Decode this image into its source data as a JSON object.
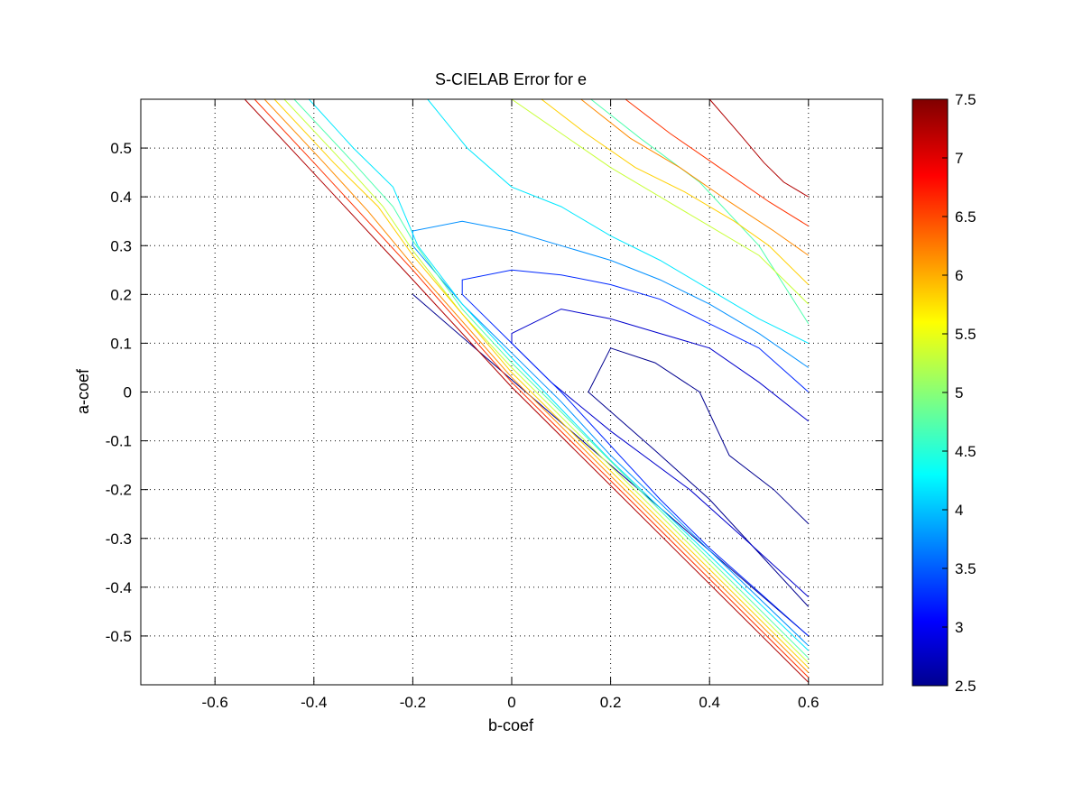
{
  "chart_data": {
    "type": "contour",
    "title": "S-CIELAB Error for e",
    "xlabel": "b-coef",
    "ylabel": "a-coef",
    "xlim": [
      -0.75,
      0.75
    ],
    "ylim": [
      -0.6,
      0.6
    ],
    "xticks": [
      -0.6,
      -0.4,
      -0.2,
      0,
      0.2,
      0.4,
      0.6
    ],
    "yticks": [
      -0.5,
      -0.4,
      -0.3,
      -0.2,
      -0.1,
      0,
      0.1,
      0.2,
      0.3,
      0.4,
      0.5
    ],
    "xtick_labels": [
      "-0.6",
      "-0.4",
      "-0.2",
      "0",
      "0.2",
      "0.4",
      "0.6"
    ],
    "ytick_labels": [
      "-0.5",
      "-0.4",
      "-0.3",
      "-0.2",
      "-0.1",
      "0",
      "0.1",
      "0.2",
      "0.3",
      "0.4",
      "0.5"
    ],
    "grid": "dotted",
    "colorbar": {
      "range": [
        2.5,
        7.5
      ],
      "ticks": [
        2.5,
        3,
        3.5,
        4,
        4.5,
        5,
        5.5,
        6,
        6.5,
        7,
        7.5
      ],
      "tick_labels": [
        "2.5",
        "3",
        "3.5",
        "4",
        "4.5",
        "5",
        "5.5",
        "6",
        "6.5",
        "7",
        "7.5"
      ],
      "colormap": "jet",
      "placement": "right"
    },
    "contours": [
      {
        "level": 2.9,
        "color": "#00008f",
        "points": [
          [
            0.155,
            0.0
          ],
          [
            0.2,
            0.09
          ],
          [
            0.29,
            0.06
          ],
          [
            0.38,
            0.0
          ],
          [
            0.44,
            -0.13
          ],
          [
            0.53,
            -0.2
          ],
          [
            0.6,
            -0.27
          ]
        ]
      },
      {
        "level": 2.9,
        "color": "#00008f",
        "points": [
          [
            0.155,
            0.0
          ],
          [
            0.29,
            -0.12
          ],
          [
            0.4,
            -0.22
          ],
          [
            0.5,
            -0.33
          ],
          [
            0.6,
            -0.44
          ]
        ]
      },
      {
        "level": 2.9,
        "color": "#00008f",
        "points": [
          [
            -0.2,
            0.2
          ],
          [
            0.6,
            -0.5
          ]
        ]
      },
      {
        "level": 3.2,
        "color": "#0000cc",
        "points": [
          [
            0.0,
            0.1
          ],
          [
            0.0,
            0.12
          ],
          [
            0.1,
            0.17
          ],
          [
            0.2,
            0.15
          ],
          [
            0.3,
            0.12
          ],
          [
            0.4,
            0.09
          ],
          [
            0.5,
            0.02
          ],
          [
            0.6,
            -0.06
          ]
        ]
      },
      {
        "level": 3.2,
        "color": "#0000cc",
        "points": [
          [
            0.0,
            0.1
          ],
          [
            0.08,
            0.02
          ],
          [
            0.2,
            -0.08
          ],
          [
            0.36,
            -0.2
          ],
          [
            0.47,
            -0.3
          ],
          [
            0.6,
            -0.42
          ]
        ]
      },
      {
        "level": 3.5,
        "color": "#0028ff",
        "points": [
          [
            -0.1,
            0.2
          ],
          [
            -0.1,
            0.23
          ],
          [
            0.0,
            0.25
          ],
          [
            0.1,
            0.24
          ],
          [
            0.2,
            0.22
          ],
          [
            0.3,
            0.19
          ],
          [
            0.4,
            0.14
          ],
          [
            0.5,
            0.09
          ],
          [
            0.6,
            0.0
          ]
        ]
      },
      {
        "level": 3.5,
        "color": "#0028ff",
        "points": [
          [
            -0.1,
            0.2
          ],
          [
            0.0,
            0.1
          ],
          [
            0.1,
            0.0
          ],
          [
            0.2,
            -0.11
          ],
          [
            0.3,
            -0.22
          ],
          [
            0.4,
            -0.32
          ],
          [
            0.6,
            -0.5
          ]
        ]
      },
      {
        "level": 3.8,
        "color": "#0090ff",
        "points": [
          [
            -0.2,
            0.3
          ],
          [
            -0.2,
            0.33
          ],
          [
            -0.1,
            0.35
          ],
          [
            0.0,
            0.33
          ],
          [
            0.1,
            0.3
          ],
          [
            0.2,
            0.27
          ],
          [
            0.3,
            0.23
          ],
          [
            0.4,
            0.18
          ],
          [
            0.5,
            0.12
          ],
          [
            0.6,
            0.05
          ]
        ]
      },
      {
        "level": 3.8,
        "color": "#0090ff",
        "points": [
          [
            -0.2,
            0.3
          ],
          [
            -0.1,
            0.18
          ],
          [
            0.0,
            0.08
          ],
          [
            0.1,
            -0.02
          ],
          [
            0.2,
            -0.13
          ],
          [
            0.6,
            -0.52
          ]
        ]
      },
      {
        "level": 4.3,
        "color": "#00e8ff",
        "points": [
          [
            -0.17,
            0.6
          ],
          [
            -0.09,
            0.5
          ],
          [
            0.0,
            0.42
          ],
          [
            0.1,
            0.38
          ],
          [
            0.2,
            0.32
          ],
          [
            0.3,
            0.27
          ],
          [
            0.4,
            0.21
          ],
          [
            0.5,
            0.15
          ],
          [
            0.6,
            0.1
          ]
        ]
      },
      {
        "level": 4.3,
        "color": "#00e8ff",
        "points": [
          [
            -0.41,
            0.6
          ],
          [
            -0.32,
            0.5
          ],
          [
            -0.24,
            0.42
          ],
          [
            -0.19,
            0.3
          ],
          [
            -0.1,
            0.18
          ],
          [
            0.0,
            0.07
          ],
          [
            0.2,
            -0.14
          ],
          [
            0.6,
            -0.53
          ]
        ]
      },
      {
        "level": 4.8,
        "color": "#50ffaf",
        "points": [
          [
            0.16,
            0.6
          ],
          [
            0.26,
            0.52
          ],
          [
            0.38,
            0.43
          ],
          [
            0.5,
            0.3
          ],
          [
            0.6,
            0.14
          ]
        ]
      },
      {
        "level": 4.8,
        "color": "#50ffaf",
        "points": [
          [
            -0.44,
            0.6
          ],
          [
            -0.32,
            0.47
          ],
          [
            -0.24,
            0.38
          ],
          [
            -0.2,
            0.31
          ],
          [
            -0.1,
            0.17
          ],
          [
            0.0,
            0.06
          ],
          [
            0.6,
            -0.545
          ]
        ]
      },
      {
        "level": 5.3,
        "color": "#c8ff38",
        "points": [
          [
            0.0,
            0.6
          ],
          [
            0.1,
            0.53
          ],
          [
            0.2,
            0.46
          ],
          [
            0.3,
            0.4
          ],
          [
            0.4,
            0.34
          ],
          [
            0.5,
            0.28
          ],
          [
            0.6,
            0.18
          ]
        ]
      },
      {
        "level": 5.3,
        "color": "#c8ff38",
        "points": [
          [
            -0.46,
            0.6
          ],
          [
            -0.34,
            0.47
          ],
          [
            -0.26,
            0.38
          ],
          [
            -0.2,
            0.29
          ],
          [
            -0.1,
            0.16
          ],
          [
            0.0,
            0.05
          ],
          [
            0.6,
            -0.555
          ]
        ]
      },
      {
        "level": 5.8,
        "color": "#ffd000",
        "points": [
          [
            0.06,
            0.6
          ],
          [
            0.15,
            0.53
          ],
          [
            0.25,
            0.46
          ],
          [
            0.35,
            0.41
          ],
          [
            0.45,
            0.35
          ],
          [
            0.52,
            0.3
          ],
          [
            0.6,
            0.22
          ]
        ]
      },
      {
        "level": 5.8,
        "color": "#ffd000",
        "points": [
          [
            -0.48,
            0.6
          ],
          [
            -0.36,
            0.47
          ],
          [
            -0.27,
            0.38
          ],
          [
            -0.2,
            0.28
          ],
          [
            0.0,
            0.04
          ],
          [
            0.6,
            -0.565
          ]
        ]
      },
      {
        "level": 6.3,
        "color": "#ff8a00",
        "points": [
          [
            0.14,
            0.6
          ],
          [
            0.24,
            0.52
          ],
          [
            0.34,
            0.46
          ],
          [
            0.44,
            0.39
          ],
          [
            0.53,
            0.33
          ],
          [
            0.6,
            0.28
          ]
        ]
      },
      {
        "level": 6.3,
        "color": "#ff8a00",
        "points": [
          [
            -0.5,
            0.6
          ],
          [
            -0.38,
            0.47
          ],
          [
            -0.29,
            0.37
          ],
          [
            -0.2,
            0.26
          ],
          [
            0.0,
            0.03
          ],
          [
            0.6,
            -0.575
          ]
        ]
      },
      {
        "level": 6.8,
        "color": "#ff3300",
        "points": [
          [
            0.23,
            0.6
          ],
          [
            0.32,
            0.53
          ],
          [
            0.42,
            0.46
          ],
          [
            0.52,
            0.39
          ],
          [
            0.6,
            0.34
          ]
        ]
      },
      {
        "level": 6.8,
        "color": "#ff3300",
        "points": [
          [
            -0.52,
            0.6
          ],
          [
            -0.4,
            0.47
          ],
          [
            -0.3,
            0.36
          ],
          [
            -0.2,
            0.25
          ],
          [
            0.0,
            0.02
          ],
          [
            0.6,
            -0.585
          ]
        ]
      },
      {
        "level": 7.3,
        "color": "#b00000",
        "points": [
          [
            0.4,
            0.6
          ],
          [
            0.46,
            0.53
          ],
          [
            0.51,
            0.47
          ],
          [
            0.55,
            0.43
          ],
          [
            0.6,
            0.4
          ]
        ]
      },
      {
        "level": 7.3,
        "color": "#b00000",
        "points": [
          [
            -0.54,
            0.6
          ],
          [
            -0.42,
            0.47
          ],
          [
            -0.31,
            0.35
          ],
          [
            -0.2,
            0.23
          ],
          [
            0.0,
            0.01
          ],
          [
            0.6,
            -0.595
          ]
        ]
      }
    ]
  }
}
